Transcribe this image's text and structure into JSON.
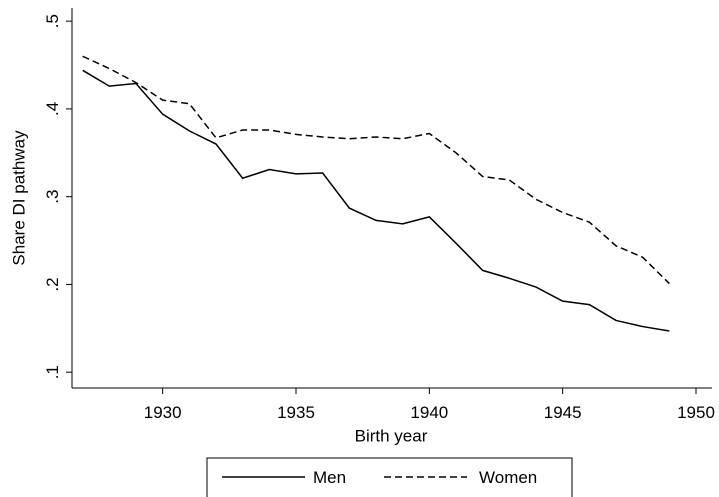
{
  "chart_data": {
    "type": "line",
    "x_label": "Birth year",
    "y_label": "Share DI pathway",
    "x": [
      1927,
      1928,
      1929,
      1930,
      1931,
      1932,
      1933,
      1934,
      1935,
      1936,
      1937,
      1938,
      1939,
      1940,
      1941,
      1942,
      1943,
      1944,
      1945,
      1946,
      1947,
      1948,
      1949
    ],
    "series": [
      {
        "name": "Men",
        "color": "#000000",
        "style": "solid",
        "values": [
          0.444,
          0.426,
          0.429,
          0.394,
          0.375,
          0.36,
          0.321,
          0.331,
          0.326,
          0.327,
          0.287,
          0.273,
          0.269,
          0.277,
          0.247,
          0.216,
          0.207,
          0.197,
          0.181,
          0.177,
          0.159,
          0.152,
          0.147
        ]
      },
      {
        "name": "Women",
        "color": "#000000",
        "style": "dashed",
        "values": [
          0.46,
          0.446,
          0.43,
          0.41,
          0.406,
          0.367,
          0.376,
          0.376,
          0.371,
          0.368,
          0.366,
          0.368,
          0.366,
          0.372,
          0.35,
          0.323,
          0.319,
          0.297,
          0.282,
          0.271,
          0.244,
          0.231,
          0.201
        ]
      }
    ],
    "xlim": [
      1926.6,
      1950.6
    ],
    "xticks": [
      1930,
      1935,
      1940,
      1945,
      1950
    ],
    "ylim": [
      0.082,
      0.515
    ],
    "yticks": [
      {
        "value": 0.1,
        "label": ".1"
      },
      {
        "value": 0.2,
        "label": ".2"
      },
      {
        "value": 0.3,
        "label": ".3"
      },
      {
        "value": 0.4,
        "label": ".4"
      },
      {
        "value": 0.5,
        "label": ".5"
      }
    ],
    "legend": "bottom"
  }
}
